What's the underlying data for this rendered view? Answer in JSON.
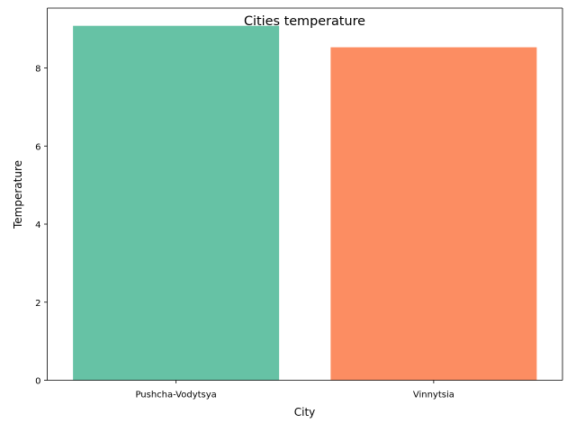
{
  "chart_data": {
    "type": "bar",
    "title": "Cities temperature",
    "xlabel": "City",
    "ylabel": "Temperature",
    "categories": [
      "Pushcha-Vodytsya",
      "Vinnytsia"
    ],
    "values": [
      9.08,
      8.53
    ],
    "colors": [
      "#66c2a5",
      "#fc8d62"
    ],
    "ylim": [
      0,
      9.534
    ],
    "yticks": [
      0,
      2,
      4,
      6,
      8
    ],
    "grid": false,
    "legend": "none"
  }
}
